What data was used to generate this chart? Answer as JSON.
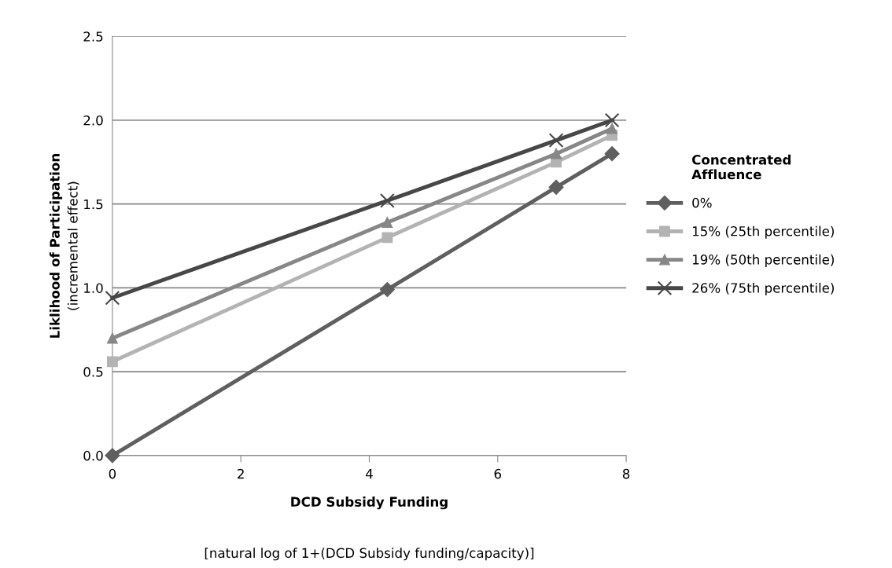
{
  "chart_data": {
    "type": "line",
    "xlabel": "DCD Subsidy Funding\n[natural log of 1+(DCD Subsidy funding/capacity)]",
    "ylabel": "Liklihood of Participation\n(incremental effect)",
    "legend_title": "Concentrated\nAffluence",
    "x": [
      0,
      4.28,
      6.91,
      7.78
    ],
    "series": [
      {
        "name": "0%",
        "color": "#5f5f5f",
        "marker": "diamond",
        "values": [
          0.0,
          0.99,
          1.6,
          1.8
        ]
      },
      {
        "name": "15% (25th percentile)",
        "color": "#b3b3b3",
        "marker": "square",
        "values": [
          0.56,
          1.3,
          1.75,
          1.91
        ]
      },
      {
        "name": "19% (50th percentile)",
        "color": "#878787",
        "marker": "triangle",
        "values": [
          0.7,
          1.39,
          1.8,
          1.95
        ]
      },
      {
        "name": "26% (75th percentile)",
        "color": "#474747",
        "marker": "cross",
        "values": [
          0.94,
          1.52,
          1.88,
          2.0
        ]
      }
    ],
    "xlim": [
      0,
      8
    ],
    "xticks": [
      0,
      2,
      4,
      6,
      8
    ],
    "ylim": [
      0,
      2.5
    ],
    "yticks": [
      {
        "value": 0,
        "label": "0.0"
      },
      {
        "value": 0.5,
        "label": "0.5"
      },
      {
        "value": 1,
        "label": "1.0"
      },
      {
        "value": 1.5,
        "label": "1.5"
      },
      {
        "value": 2,
        "label": "2.0"
      },
      {
        "value": 2.5,
        "label": "2.5"
      }
    ],
    "grid": "y",
    "legend": "right",
    "line_style": "solid"
  }
}
